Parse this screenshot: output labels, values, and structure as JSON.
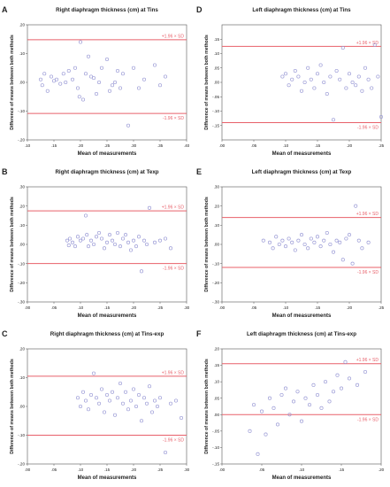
{
  "chart_data": [
    {
      "panel": "A",
      "type": "scatter",
      "title": "Right diaphragm thickness (cm) at Tins",
      "xlabel": "Mean of measurements",
      "ylabel": "Difference of means between both methods",
      "xlim": [
        0.1,
        0.4
      ],
      "ylim": [
        -0.2,
        0.2
      ],
      "xticks": [
        ".10",
        ".15",
        ".20",
        ".25",
        ".30",
        ".35",
        ".40"
      ],
      "yticks": [
        ".20",
        ".10",
        ".00",
        "-.10",
        "-.20"
      ],
      "upper_label": "+1.96 × SD",
      "lower_label": "-1.96 × SD",
      "upper_loa": 0.148,
      "lower_loa": -0.108,
      "points": [
        [
          0.125,
          0.01
        ],
        [
          0.128,
          -0.01
        ],
        [
          0.132,
          0.03
        ],
        [
          0.138,
          -0.03
        ],
        [
          0.145,
          0.02
        ],
        [
          0.15,
          0.005
        ],
        [
          0.155,
          0.01
        ],
        [
          0.162,
          -0.005
        ],
        [
          0.168,
          0.03
        ],
        [
          0.172,
          0.0
        ],
        [
          0.178,
          0.04
        ],
        [
          0.185,
          0.01
        ],
        [
          0.19,
          0.05
        ],
        [
          0.195,
          -0.02
        ],
        [
          0.198,
          -0.05
        ],
        [
          0.2,
          0.14
        ],
        [
          0.205,
          -0.06
        ],
        [
          0.21,
          0.03
        ],
        [
          0.215,
          0.09
        ],
        [
          0.22,
          0.02
        ],
        [
          0.225,
          0.015
        ],
        [
          0.23,
          -0.04
        ],
        [
          0.235,
          0.0
        ],
        [
          0.24,
          0.05
        ],
        [
          0.25,
          0.08
        ],
        [
          0.255,
          -0.03
        ],
        [
          0.26,
          -0.01
        ],
        [
          0.265,
          0.0
        ],
        [
          0.27,
          0.04
        ],
        [
          0.275,
          -0.02
        ],
        [
          0.28,
          0.03
        ],
        [
          0.29,
          -0.15
        ],
        [
          0.3,
          0.05
        ],
        [
          0.31,
          -0.02
        ],
        [
          0.32,
          0.01
        ],
        [
          0.34,
          0.06
        ],
        [
          0.35,
          -0.01
        ],
        [
          0.36,
          0.02
        ]
      ]
    },
    {
      "panel": "B",
      "type": "scatter",
      "title": "Right diaphragm thickness (cm) at Texp",
      "xlabel": "Mean of measurements",
      "ylabel": "Difference of means between both methods",
      "xlim": [
        0.0,
        0.3
      ],
      "ylim": [
        -0.3,
        0.3
      ],
      "xticks": [
        ".00",
        ".05",
        ".10",
        ".15",
        ".20",
        ".25",
        ".30"
      ],
      "yticks": [
        ".30",
        ".20",
        ".10",
        ".00",
        "-.10",
        "-.20",
        "-.30"
      ],
      "upper_label": "+1.96 × SD",
      "lower_label": "-1.96 × SD",
      "upper_loa": 0.175,
      "lower_loa": -0.1,
      "points": [
        [
          0.075,
          0.02
        ],
        [
          0.078,
          -0.005
        ],
        [
          0.08,
          0.03
        ],
        [
          0.085,
          0.01
        ],
        [
          0.09,
          -0.01
        ],
        [
          0.095,
          0.04
        ],
        [
          0.1,
          0.02
        ],
        [
          0.105,
          0.03
        ],
        [
          0.11,
          0.15
        ],
        [
          0.112,
          0.05
        ],
        [
          0.115,
          -0.01
        ],
        [
          0.12,
          0.02
        ],
        [
          0.125,
          0.0
        ],
        [
          0.13,
          0.04
        ],
        [
          0.135,
          0.06
        ],
        [
          0.14,
          0.03
        ],
        [
          0.145,
          -0.02
        ],
        [
          0.15,
          0.01
        ],
        [
          0.155,
          0.05
        ],
        [
          0.16,
          0.02
        ],
        [
          0.165,
          0.0
        ],
        [
          0.17,
          0.06
        ],
        [
          0.175,
          -0.01
        ],
        [
          0.18,
          0.03
        ],
        [
          0.185,
          0.05
        ],
        [
          0.19,
          0.01
        ],
        [
          0.195,
          -0.03
        ],
        [
          0.2,
          0.02
        ],
        [
          0.205,
          -0.01
        ],
        [
          0.21,
          0.04
        ],
        [
          0.215,
          -0.14
        ],
        [
          0.22,
          0.02
        ],
        [
          0.225,
          0.0
        ],
        [
          0.23,
          0.19
        ],
        [
          0.24,
          0.01
        ],
        [
          0.25,
          0.02
        ],
        [
          0.26,
          0.03
        ],
        [
          0.27,
          -0.02
        ]
      ]
    },
    {
      "panel": "C",
      "type": "scatter",
      "title": "Right diaphragm thickness (cm) at Tins-exp",
      "xlabel": "Mean of measurements",
      "ylabel": "Difference of means between both methods",
      "xlim": [
        0.0,
        0.3
      ],
      "ylim": [
        -0.2,
        0.2
      ],
      "xticks": [
        ".00",
        ".05",
        ".10",
        ".15",
        ".20",
        ".25",
        ".30"
      ],
      "yticks": [
        ".20",
        ".10",
        ".00",
        "-.10",
        "-.20"
      ],
      "upper_label": "+1.96 × SD",
      "lower_label": "-1.96 × SD",
      "upper_loa": 0.105,
      "lower_loa": -0.1,
      "points": [
        [
          0.095,
          0.03
        ],
        [
          0.1,
          0.0
        ],
        [
          0.105,
          0.05
        ],
        [
          0.11,
          0.02
        ],
        [
          0.115,
          -0.01
        ],
        [
          0.12,
          0.04
        ],
        [
          0.125,
          0.115
        ],
        [
          0.13,
          0.03
        ],
        [
          0.135,
          0.01
        ],
        [
          0.14,
          0.06
        ],
        [
          0.145,
          -0.02
        ],
        [
          0.15,
          0.04
        ],
        [
          0.155,
          0.02
        ],
        [
          0.16,
          0.05
        ],
        [
          0.165,
          -0.03
        ],
        [
          0.17,
          0.03
        ],
        [
          0.175,
          0.08
        ],
        [
          0.18,
          0.01
        ],
        [
          0.185,
          0.05
        ],
        [
          0.19,
          -0.01
        ],
        [
          0.195,
          0.02
        ],
        [
          0.2,
          0.06
        ],
        [
          0.205,
          0.0
        ],
        [
          0.21,
          0.04
        ],
        [
          0.215,
          -0.05
        ],
        [
          0.22,
          0.03
        ],
        [
          0.225,
          0.01
        ],
        [
          0.23,
          0.07
        ],
        [
          0.235,
          -0.02
        ],
        [
          0.24,
          0.02
        ],
        [
          0.245,
          0.0
        ],
        [
          0.25,
          0.03
        ],
        [
          0.26,
          -0.16
        ],
        [
          0.27,
          0.01
        ],
        [
          0.28,
          0.02
        ],
        [
          0.29,
          -0.04
        ]
      ]
    },
    {
      "panel": "D",
      "type": "scatter",
      "title": "Left diaphragm thickness (cm) at Tins",
      "xlabel": "Mean of measurements",
      "ylabel": "Difference of means between both methods",
      "xlim": [
        0.0,
        0.25
      ],
      "ylim": [
        -0.2,
        0.2
      ],
      "xticks": [
        ".00",
        ".05",
        ".10",
        ".15",
        ".20",
        ".25"
      ],
      "yticks": [
        ".15",
        ".10",
        ".05",
        ".00",
        "-.05",
        "-.10",
        "-.15"
      ],
      "upper_label": "+1.96 × SD",
      "lower_label": "-1.96 × SD",
      "upper_loa": 0.125,
      "lower_loa": -0.14,
      "points": [
        [
          0.095,
          0.02
        ],
        [
          0.1,
          0.03
        ],
        [
          0.105,
          -0.01
        ],
        [
          0.11,
          0.01
        ],
        [
          0.115,
          0.04
        ],
        [
          0.12,
          0.02
        ],
        [
          0.125,
          -0.03
        ],
        [
          0.13,
          0.0
        ],
        [
          0.135,
          0.05
        ],
        [
          0.14,
          0.01
        ],
        [
          0.145,
          -0.02
        ],
        [
          0.15,
          0.03
        ],
        [
          0.155,
          0.06
        ],
        [
          0.16,
          0.0
        ],
        [
          0.165,
          -0.04
        ],
        [
          0.17,
          0.02
        ],
        [
          0.175,
          -0.13
        ],
        [
          0.18,
          0.04
        ],
        [
          0.185,
          0.01
        ],
        [
          0.19,
          0.12
        ],
        [
          0.195,
          -0.02
        ],
        [
          0.2,
          0.03
        ],
        [
          0.205,
          0.0
        ],
        [
          0.21,
          -0.01
        ],
        [
          0.215,
          0.02
        ],
        [
          0.22,
          -0.03
        ],
        [
          0.225,
          0.05
        ],
        [
          0.23,
          0.01
        ],
        [
          0.235,
          -0.02
        ],
        [
          0.24,
          0.13
        ],
        [
          0.245,
          0.02
        ],
        [
          0.25,
          -0.12
        ]
      ]
    },
    {
      "panel": "E",
      "type": "scatter",
      "title": "Left diaphragm thickness (cm) at Texp",
      "xlabel": "Mean of measurements",
      "ylabel": "Difference of means between both methods",
      "xlim": [
        0.0,
        0.25
      ],
      "ylim": [
        -0.3,
        0.3
      ],
      "xticks": [
        ".00",
        ".05",
        ".10",
        ".15",
        ".20",
        ".25"
      ],
      "yticks": [
        ".30",
        ".20",
        ".10",
        ".00",
        "-.10",
        "-.20",
        "-.30"
      ],
      "upper_label": "+1.96 × SD",
      "lower_label": "-1.96 × SD",
      "upper_loa": 0.14,
      "lower_loa": -0.12,
      "points": [
        [
          0.065,
          0.02
        ],
        [
          0.075,
          0.01
        ],
        [
          0.08,
          -0.02
        ],
        [
          0.085,
          0.04
        ],
        [
          0.09,
          0.0
        ],
        [
          0.095,
          0.02
        ],
        [
          0.1,
          -0.01
        ],
        [
          0.105,
          0.03
        ],
        [
          0.11,
          0.01
        ],
        [
          0.115,
          -0.03
        ],
        [
          0.12,
          0.02
        ],
        [
          0.125,
          0.05
        ],
        [
          0.13,
          0.0
        ],
        [
          0.135,
          -0.02
        ],
        [
          0.14,
          0.03
        ],
        [
          0.145,
          0.01
        ],
        [
          0.15,
          0.04
        ],
        [
          0.155,
          -0.01
        ],
        [
          0.16,
          0.02
        ],
        [
          0.165,
          0.06
        ],
        [
          0.17,
          0.0
        ],
        [
          0.175,
          -0.04
        ],
        [
          0.18,
          0.02
        ],
        [
          0.185,
          0.01
        ],
        [
          0.19,
          -0.08
        ],
        [
          0.195,
          0.03
        ],
        [
          0.2,
          0.05
        ],
        [
          0.205,
          -0.1
        ],
        [
          0.21,
          0.2
        ],
        [
          0.215,
          0.02
        ],
        [
          0.22,
          -0.02
        ],
        [
          0.23,
          0.01
        ]
      ]
    },
    {
      "panel": "F",
      "type": "scatter",
      "title": "Left diaphragm thickness (cm) at Tins-exp",
      "xlabel": "Mean of measurements",
      "ylabel": "Difference of means between both methods",
      "xlim": [
        0.0,
        0.2
      ],
      "ylim": [
        -0.15,
        0.2
      ],
      "xticks": [
        ".00",
        ".05",
        ".10",
        ".15",
        ".20"
      ],
      "yticks": [
        ".20",
        ".15",
        ".10",
        ".05",
        ".00",
        "-.05",
        "-.10",
        "-.15"
      ],
      "upper_label": "+1.96 × SD",
      "lower_label": "-1.96 × SD",
      "upper_loa": 0.155,
      "lower_loa": 0.0,
      "points": [
        [
          0.035,
          -0.05
        ],
        [
          0.04,
          0.03
        ],
        [
          0.045,
          -0.12
        ],
        [
          0.05,
          0.01
        ],
        [
          0.055,
          -0.06
        ],
        [
          0.06,
          0.05
        ],
        [
          0.065,
          0.02
        ],
        [
          0.07,
          -0.03
        ],
        [
          0.075,
          0.06
        ],
        [
          0.08,
          0.08
        ],
        [
          0.085,
          0.0
        ],
        [
          0.09,
          0.04
        ],
        [
          0.095,
          0.07
        ],
        [
          0.1,
          -0.02
        ],
        [
          0.105,
          0.05
        ],
        [
          0.11,
          0.03
        ],
        [
          0.115,
          0.09
        ],
        [
          0.12,
          0.06
        ],
        [
          0.125,
          0.02
        ],
        [
          0.13,
          0.1
        ],
        [
          0.135,
          0.04
        ],
        [
          0.14,
          0.07
        ],
        [
          0.145,
          0.12
        ],
        [
          0.15,
          0.08
        ],
        [
          0.155,
          0.16
        ],
        [
          0.16,
          0.11
        ],
        [
          0.17,
          0.09
        ],
        [
          0.18,
          0.13
        ]
      ]
    }
  ]
}
